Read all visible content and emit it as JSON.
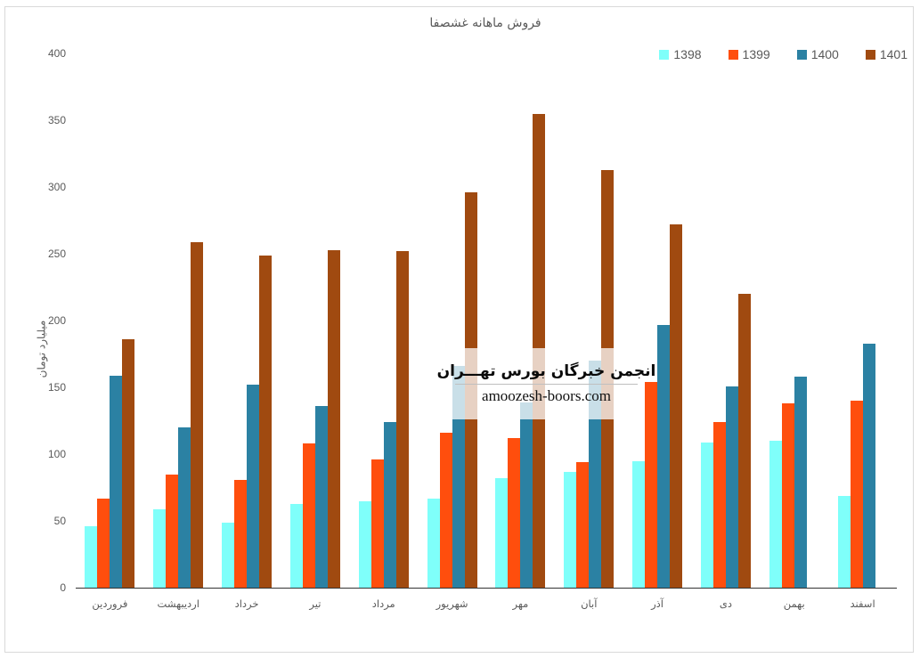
{
  "chart_data": {
    "type": "bar",
    "title": "فروش ماهانه غشصفا",
    "xlabel": "",
    "ylabel": "میلیارد تومان",
    "ylim": [
      0,
      400
    ],
    "ytick_step": 50,
    "yticks": [
      0,
      50,
      100,
      150,
      200,
      250,
      300,
      350,
      400
    ],
    "grid": false,
    "legend_position": "top-right",
    "categories": [
      "فروردین",
      "اردیبهشت",
      "خرداد",
      "تیر",
      "مرداد",
      "شهریور",
      "مهر",
      "آبان",
      "آذر",
      "دی",
      "بهمن",
      "اسفند"
    ],
    "series": [
      {
        "name": "1398",
        "color": "#7FFFFA",
        "values": [
          46,
          59,
          49,
          63,
          65,
          67,
          82,
          87,
          95,
          109,
          110,
          69
        ]
      },
      {
        "name": "1399",
        "color": "#FF4E0D",
        "values": [
          67,
          85,
          81,
          108,
          96,
          116,
          112,
          94,
          154,
          124,
          138,
          140
        ]
      },
      {
        "name": "1400",
        "color": "#2B81A3",
        "values": [
          159,
          120,
          152,
          136,
          124,
          166,
          139,
          170,
          197,
          151,
          158,
          183
        ]
      },
      {
        "name": "1401",
        "color": "#A04A10",
        "values": [
          186,
          259,
          249,
          253,
          252,
          296,
          355,
          313,
          272,
          220,
          null,
          null
        ]
      }
    ]
  },
  "watermark": {
    "line1": "انجمن خبرگان بورس تهـــران",
    "line2": "amoozesh-boors.com"
  },
  "colors": {
    "background": "#FFFFFF",
    "frame_border": "#D9D9D9",
    "axis_text": "#595959",
    "axis_line": "#333333"
  }
}
